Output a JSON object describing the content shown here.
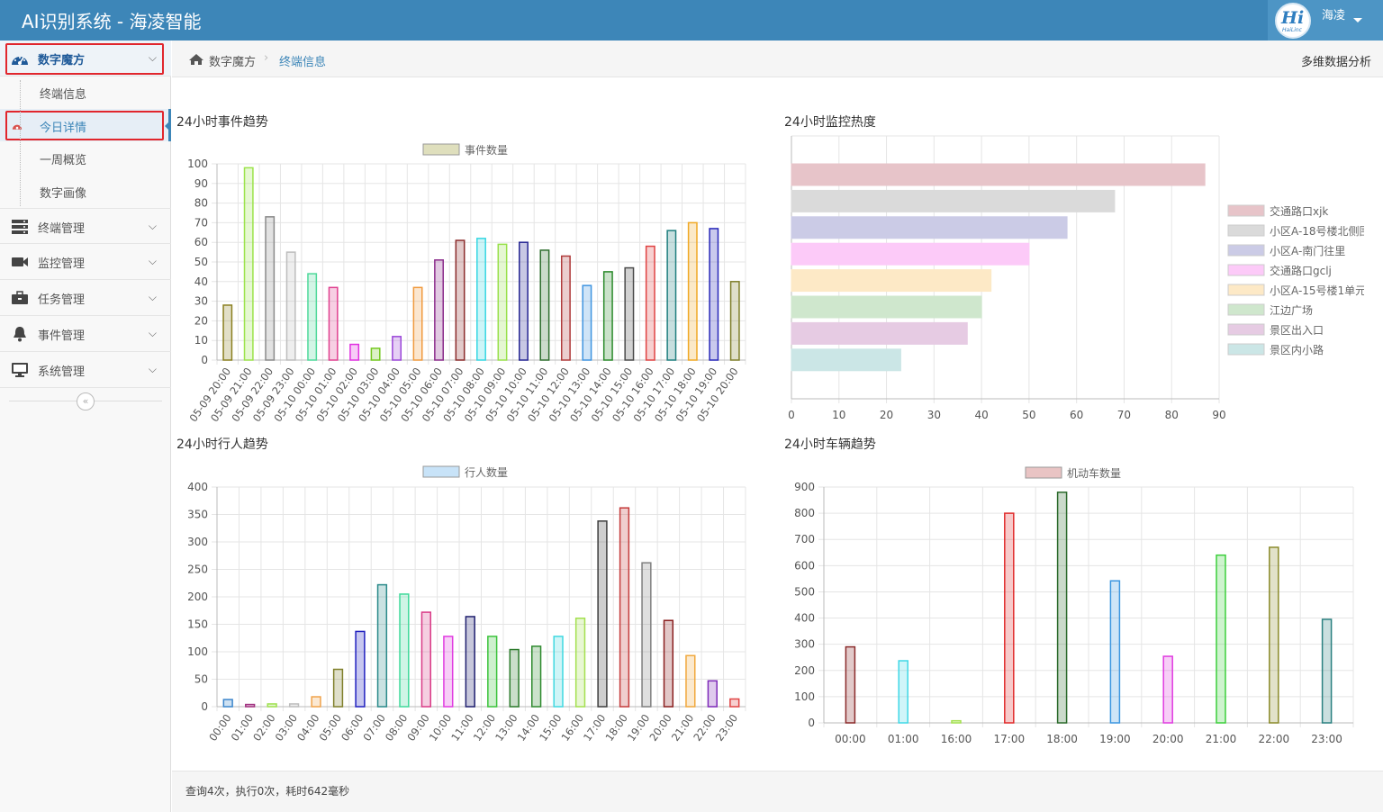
{
  "header": {
    "title": "AI识别系统 - 海凌智能",
    "user": "海凌",
    "logo": "HaiLinc"
  },
  "sidebar": {
    "items": [
      {
        "label": "数字魔方",
        "icon": "dashboard-icon",
        "expanded": true
      },
      {
        "label": "终端管理",
        "icon": "server-icon"
      },
      {
        "label": "监控管理",
        "icon": "video-camera-icon"
      },
      {
        "label": "任务管理",
        "icon": "briefcase-icon"
      },
      {
        "label": "事件管理",
        "icon": "bell-icon"
      },
      {
        "label": "系统管理",
        "icon": "monitor-icon"
      }
    ],
    "subitems": [
      "终端信息",
      "今日详情",
      "一周概览",
      "数字画像"
    ],
    "active_subitem": "今日详情",
    "collapse": "«"
  },
  "breadcrumb": {
    "items": [
      "数字魔方",
      "终端信息"
    ],
    "right_link": "多维数据分析"
  },
  "panels": {
    "events": "24小时事件趋势",
    "heat": "24小时监控热度",
    "pedestrians": "24小时行人趋势",
    "vehicles": "24小时车辆趋势"
  },
  "footer": {
    "text": "查询4次，执行0次，耗时642毫秒"
  },
  "chart_data": [
    {
      "type": "bar",
      "title": "24小时事件趋势",
      "categories": [
        "05-09 20:00",
        "05-09 21:00",
        "05-09 22:00",
        "05-09 23:00",
        "05-10 00:00",
        "05-10 01:00",
        "05-10 02:00",
        "05-10 03:00",
        "05-10 04:00",
        "05-10 05:00",
        "05-10 06:00",
        "05-10 07:00",
        "05-10 08:00",
        "05-10 09:00",
        "05-10 10:00",
        "05-10 11:00",
        "05-10 12:00",
        "05-10 13:00",
        "05-10 14:00",
        "05-10 15:00",
        "05-10 16:00",
        "05-10 17:00",
        "05-10 18:00",
        "05-10 19:00",
        "05-10 20:00"
      ],
      "series": [
        {
          "name": "事件数量",
          "values": [
            28,
            98,
            73,
            55,
            44,
            37,
            8,
            6,
            12,
            37,
            51,
            61,
            62,
            59,
            60,
            56,
            53,
            38,
            45,
            47,
            58,
            66,
            70,
            67,
            40
          ]
        }
      ],
      "ylim": [
        0,
        100
      ],
      "yticks": [
        0,
        10,
        20,
        30,
        40,
        50,
        60,
        70,
        80,
        90,
        100
      ],
      "legend_color": "#dfdfbd",
      "bar_colors": [
        "#8a7f1f",
        "#9be34a",
        "#8a8a8a",
        "#bdbdbd",
        "#4fd99a",
        "#e0408f",
        "#e030e0",
        "#73c81e",
        "#9a45d8",
        "#f09a3e",
        "#8b2b8b",
        "#8b2b2b",
        "#36d7e2",
        "#98e04a",
        "#242492",
        "#2e6e2e",
        "#b03b3b",
        "#3f94e0",
        "#2a8a2a",
        "#4b4b4b",
        "#e04343",
        "#1f7f7f",
        "#f0a824",
        "#2626b8",
        "#7e7e2a"
      ]
    },
    {
      "type": "bar",
      "orientation": "horizontal",
      "title": "24小时监控热度",
      "categories": [
        "交通路口xjk",
        "小区A-18号楼北侧围",
        "小区A-南门往里",
        "交通路口gclj",
        "小区A-15号楼1单元",
        "江边广场",
        "景区出入口",
        "景区内小路"
      ],
      "values": [
        87,
        68,
        58,
        50,
        42,
        40,
        37,
        23
      ],
      "xlim": [
        0,
        90
      ],
      "xticks": [
        0,
        10,
        20,
        30,
        40,
        50,
        60,
        70,
        80,
        90
      ],
      "legend_labels": [
        "交通路口xjk",
        "小区A-18号楼北侧围",
        "小区A-南门往里",
        "交通路口gclj",
        "小区A-15号楼1单元",
        "江边广场",
        "景区出入口",
        "景区内小路"
      ],
      "colors": [
        "#e7c4c9",
        "#dadada",
        "#cbcbe6",
        "#fccaf8",
        "#fde9c6",
        "#cfe7cd",
        "#e6cbe3",
        "#cbe6e6"
      ]
    },
    {
      "type": "bar",
      "title": "24小时行人趋势",
      "categories": [
        "00:00",
        "01:00",
        "02:00",
        "03:00",
        "04:00",
        "05:00",
        "06:00",
        "07:00",
        "08:00",
        "09:00",
        "10:00",
        "11:00",
        "12:00",
        "13:00",
        "14:00",
        "15:00",
        "16:00",
        "17:00",
        "18:00",
        "19:00",
        "20:00",
        "21:00",
        "22:00",
        "23:00"
      ],
      "series": [
        {
          "name": "行人数量",
          "values": [
            13,
            4,
            5,
            5,
            18,
            68,
            137,
            222,
            205,
            172,
            128,
            164,
            128,
            104,
            110,
            128,
            161,
            338,
            362,
            262,
            157,
            93,
            47,
            14
          ]
        }
      ],
      "ylim": [
        0,
        400
      ],
      "yticks": [
        0,
        50,
        100,
        150,
        200,
        250,
        300,
        350,
        400
      ],
      "legend_color": "#c8e3f8",
      "bar_colors": [
        "#3c86cc",
        "#a0307f",
        "#9ee04e",
        "#bdbdbd",
        "#f0a24a",
        "#7f7f2a",
        "#2020bf",
        "#2a8a8a",
        "#3fd99a",
        "#d93a86",
        "#e03be0",
        "#1f1f6f",
        "#3cc33c",
        "#2b7a2b",
        "#2e8a2e",
        "#40d8e0",
        "#a3e04e",
        "#3d3d3d",
        "#c43b3b",
        "#7f7f7f",
        "#8a1f1f",
        "#f0a83d",
        "#7e2ab8",
        "#e04545"
      ]
    },
    {
      "type": "bar",
      "title": "24小时车辆趋势",
      "categories": [
        "00:00",
        "01:00",
        "16:00",
        "17:00",
        "18:00",
        "19:00",
        "20:00",
        "21:00",
        "22:00",
        "23:00"
      ],
      "series": [
        {
          "name": "机动车数量",
          "values": [
            290,
            237,
            8,
            800,
            880,
            542,
            254,
            640,
            670,
            395
          ]
        }
      ],
      "ylim": [
        0,
        900
      ],
      "yticks": [
        0,
        100,
        200,
        300,
        400,
        500,
        600,
        700,
        800,
        900
      ],
      "legend_color": "#e9c4c4",
      "bar_colors": [
        "#8a2a2a",
        "#40d8e6",
        "#a3e04e",
        "#e02a2a",
        "#2a6a2a",
        "#3c96e0",
        "#e03be0",
        "#3ccf3c",
        "#8a8a2a",
        "#2a8080"
      ]
    }
  ]
}
